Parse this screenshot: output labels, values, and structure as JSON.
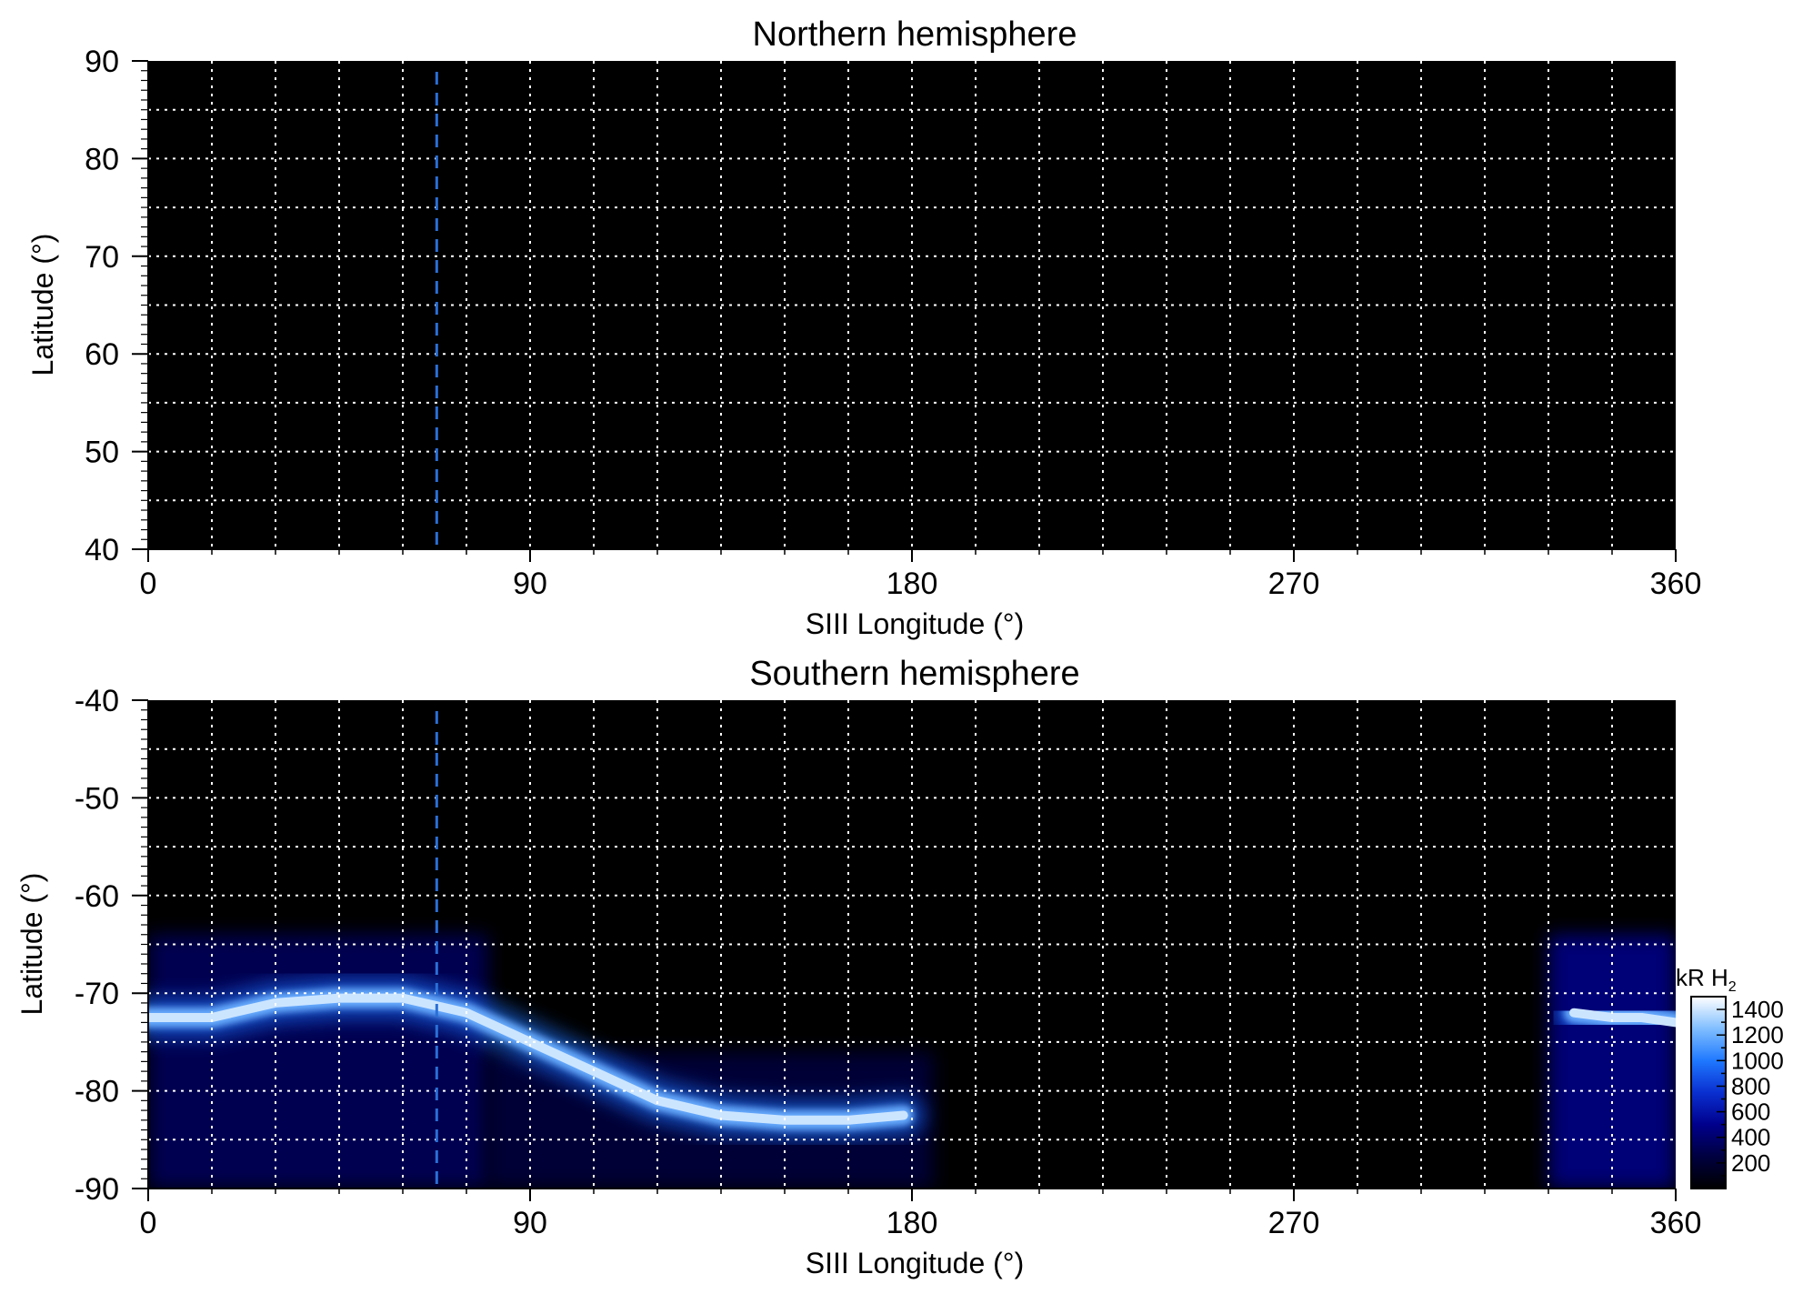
{
  "chart_data": [
    {
      "type": "heatmap",
      "title": "Northern hemisphere",
      "xlabel": "SIII Longitude (°)",
      "ylabel": "Latitude (°)",
      "xlim": [
        0,
        360
      ],
      "ylim": [
        40,
        90
      ],
      "x_ticks": [
        "0",
        "90",
        "180",
        "270",
        "360"
      ],
      "y_ticks": [
        "40",
        "50",
        "60",
        "70",
        "80",
        "90"
      ],
      "grid": true,
      "grid_x_step": 15,
      "grid_y_step": 5,
      "reference_line_longitude": 68,
      "reference_line_color": "#2a6fd6",
      "emission_bands": []
    },
    {
      "type": "heatmap",
      "title": "Southern hemisphere",
      "xlabel": "SIII Longitude (°)",
      "ylabel": "Latitude (°)",
      "xlim": [
        0,
        360
      ],
      "ylim": [
        -90,
        -40
      ],
      "x_ticks": [
        "0",
        "90",
        "180",
        "270",
        "360"
      ],
      "y_ticks": [
        "-40",
        "-50",
        "-60",
        "-70",
        "-80",
        "-90"
      ],
      "grid": true,
      "grid_x_step": 15,
      "grid_y_step": 5,
      "reference_line_longitude": 68,
      "reference_line_color": "#2a6fd6",
      "emission_bands": [
        {
          "name": "main-oval-arc",
          "points": [
            [
              0,
              -72.5
            ],
            [
              15,
              -72.5
            ],
            [
              30,
              -71
            ],
            [
              45,
              -70.5
            ],
            [
              60,
              -70.5
            ],
            [
              75,
              -72
            ],
            [
              90,
              -75
            ],
            [
              105,
              -78
            ],
            [
              120,
              -81
            ],
            [
              135,
              -82.5
            ],
            [
              150,
              -83
            ],
            [
              165,
              -83
            ],
            [
              178,
              -82.5
            ]
          ],
          "peak_kR": 1400
        },
        {
          "name": "oval-segment-east",
          "points": [
            [
              336,
              -72
            ],
            [
              345,
              -72.5
            ],
            [
              352,
              -72.5
            ],
            [
              360,
              -73
            ]
          ],
          "peak_kR": 1400
        }
      ],
      "diffuse_regions": [
        {
          "lon": [
            0,
            80
          ],
          "lat": [
            -90,
            -64
          ],
          "kR": 350
        },
        {
          "lon": [
            80,
            185
          ],
          "lat": [
            -90,
            -76
          ],
          "kR": 250
        },
        {
          "lon": [
            330,
            360
          ],
          "lat": [
            -90,
            -64
          ],
          "kR": 500
        }
      ],
      "colorbar": {
        "title_main": "kR H",
        "title_sub": "2",
        "range": [
          0,
          1500
        ],
        "ticks": [
          "200",
          "400",
          "600",
          "800",
          "1000",
          "1200",
          "1400"
        ],
        "colors": [
          "#000000",
          "#000040",
          "#00008c",
          "#0a2fd0",
          "#1f78ff",
          "#80beff",
          "#ffffff"
        ]
      }
    }
  ]
}
